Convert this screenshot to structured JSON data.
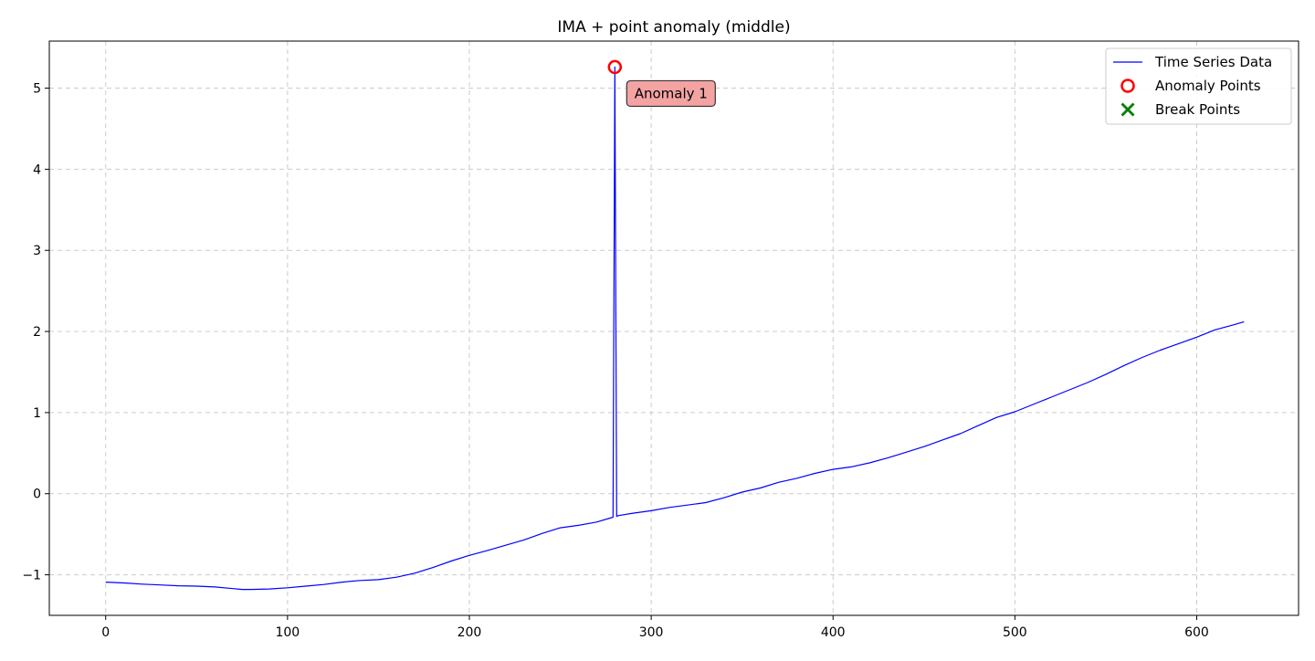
{
  "chart_data": {
    "type": "line",
    "title": "IMA + point anomaly (middle)",
    "xlabel": "",
    "ylabel": "",
    "xlim": [
      -31,
      656
    ],
    "ylim": [
      -1.5,
      5.58
    ],
    "xticks": [
      0,
      100,
      200,
      300,
      400,
      500,
      600
    ],
    "yticks": [
      -1,
      0,
      1,
      2,
      3,
      4,
      5
    ],
    "ytick_labels": [
      "−1",
      "0",
      "1",
      "2",
      "3",
      "4",
      "5"
    ],
    "grid": true,
    "legend_position": "top-right",
    "colors": {
      "series": "#0000ff",
      "anomaly": "#ff0000",
      "break": "#008000",
      "annotation_fill": "#f4a3a3",
      "grid": "#cccccc"
    },
    "series": [
      {
        "name": "Time Series Data",
        "x": [
          0,
          10,
          20,
          30,
          40,
          50,
          60,
          70,
          75,
          80,
          90,
          100,
          110,
          120,
          130,
          140,
          150,
          160,
          170,
          180,
          190,
          200,
          210,
          220,
          230,
          240,
          250,
          260,
          270,
          279,
          280,
          281,
          282,
          290,
          300,
          310,
          320,
          330,
          340,
          350,
          360,
          370,
          380,
          390,
          400,
          410,
          420,
          430,
          440,
          450,
          460,
          470,
          480,
          490,
          500,
          510,
          520,
          530,
          540,
          550,
          560,
          570,
          580,
          590,
          600,
          610,
          620,
          626
        ],
        "y": [
          -1.09,
          -1.1,
          -1.115,
          -1.125,
          -1.135,
          -1.14,
          -1.15,
          -1.17,
          -1.18,
          -1.18,
          -1.175,
          -1.16,
          -1.14,
          -1.12,
          -1.09,
          -1.07,
          -1.06,
          -1.03,
          -0.98,
          -0.91,
          -0.83,
          -0.76,
          -0.7,
          -0.635,
          -0.57,
          -0.49,
          -0.42,
          -0.39,
          -0.35,
          -0.29,
          5.26,
          -0.28,
          -0.27,
          -0.24,
          -0.21,
          -0.17,
          -0.14,
          -0.11,
          -0.05,
          0.02,
          0.07,
          0.14,
          0.19,
          0.25,
          0.3,
          0.33,
          0.38,
          0.44,
          0.51,
          0.58,
          0.66,
          0.74,
          0.84,
          0.94,
          1.01,
          1.1,
          1.19,
          1.28,
          1.37,
          1.47,
          1.58,
          1.68,
          1.77,
          1.85,
          1.93,
          2.02,
          2.08,
          2.12
        ]
      }
    ],
    "anomaly_points": [
      {
        "x": 280,
        "y": 5.26,
        "label": "Anomaly 1"
      }
    ],
    "break_points": [],
    "legend": [
      {
        "label": "Time Series Data",
        "marker": "line"
      },
      {
        "label": "Anomaly Points",
        "marker": "circle"
      },
      {
        "label": "Break Points",
        "marker": "x"
      }
    ]
  }
}
